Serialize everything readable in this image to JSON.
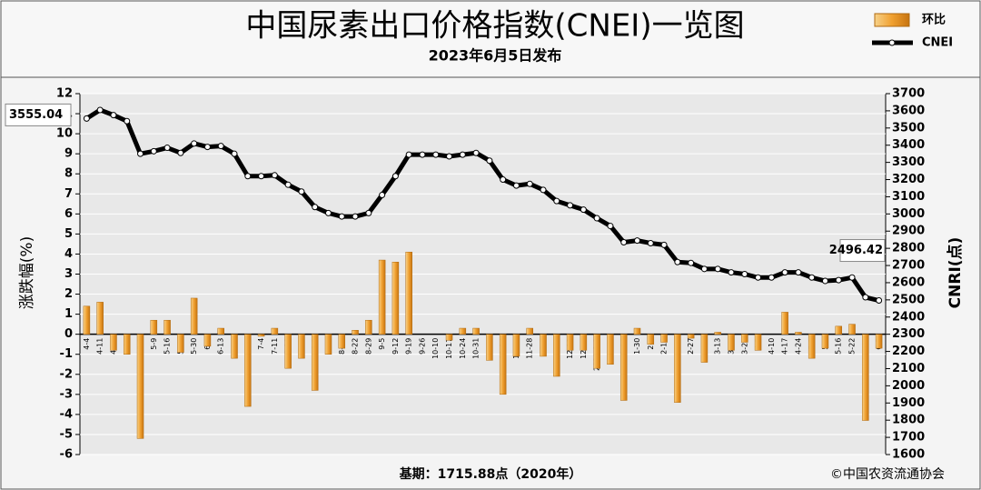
{
  "chart_data": {
    "type": "combo",
    "title": "中国尿素出口价格指数(CNEI)一览图",
    "subtitle": "2023年6月5日发布",
    "y_label": "涨跌幅(%)",
    "y2_label": "CNRI(点)",
    "footnote": "基期：1715.88点（2020年）",
    "source": "©中国农资流通协会",
    "categories": [
      "4-4",
      "4-11",
      "4-18",
      "4-25",
      "5-2",
      "5-9",
      "5-16",
      "5-23",
      "5-30",
      "6-6",
      "6-13",
      "6-20",
      "6-27",
      "7-4",
      "7-11",
      "7-18",
      "7-25",
      "8-1",
      "8-8",
      "8-15",
      "8-22",
      "8-29",
      "9-5",
      "9-12",
      "9-19",
      "9-26",
      "10-10",
      "10-17",
      "10-24",
      "10-31",
      "11-7",
      "11-14",
      "11-21",
      "11-28",
      "12-5",
      "12-12",
      "12-19",
      "12-26",
      "2023-1-2",
      "1-9",
      "1-16",
      "1-30",
      "2-6",
      "2-13",
      "2-20",
      "2-27",
      "3-6",
      "3-13",
      "3-20",
      "3-27",
      "4-3",
      "4-10",
      "4-17",
      "4-24",
      "5-1",
      "5-8",
      "5-16",
      "5-22",
      "5-29",
      "6-5"
    ],
    "series": [
      {
        "name": "环比",
        "color": "#f0a030",
        "values": [
          1.4,
          1.6,
          -0.8,
          -1.0,
          -5.2,
          0.7,
          0.7,
          -0.9,
          1.8,
          -0.6,
          0.3,
          -1.2,
          -3.6,
          -0.1,
          0.3,
          -1.7,
          -1.2,
          -2.8,
          -1.0,
          -0.7,
          0.2,
          0.7,
          3.7,
          3.6,
          4.1,
          0,
          0,
          -0.3,
          0.3,
          0.3,
          -1.3,
          -3.0,
          -1.1,
          0.3,
          -1.1,
          -2.1,
          -0.8,
          -0.8,
          -1.7,
          -1.5,
          -3.3,
          0.3,
          -0.5,
          -0.4,
          -3.4,
          -0.2,
          -1.4,
          0.1,
          -0.8,
          -0.4,
          -0.8,
          0,
          1.1,
          0.1,
          -1.2,
          -0.7,
          0.4,
          0.5,
          -4.3,
          -0.7
        ]
      },
      {
        "name": "CNEI",
        "color": "#000000",
        "axis": "y2",
        "values": [
          3555.04,
          3605,
          3575,
          3540,
          3350,
          3365,
          3385,
          3355,
          3410,
          3390,
          3395,
          3350,
          3220,
          3220,
          3225,
          3170,
          3130,
          3040,
          3005,
          2985,
          2985,
          3005,
          3110,
          3220,
          3345,
          3345,
          3345,
          3335,
          3345,
          3355,
          3310,
          3200,
          3165,
          3175,
          3140,
          3075,
          3050,
          3025,
          2975,
          2930,
          2835,
          2845,
          2830,
          2820,
          2720,
          2715,
          2680,
          2680,
          2660,
          2650,
          2630,
          2630,
          2660,
          2660,
          2630,
          2610,
          2615,
          2630,
          2515,
          2496.42
        ]
      }
    ],
    "ylim": [
      -6,
      12
    ],
    "yticks": [
      -6,
      -5,
      -4,
      -3,
      -2,
      -1,
      0,
      1,
      2,
      3,
      4,
      5,
      6,
      7,
      8,
      9,
      10,
      11,
      12
    ],
    "y2lim": [
      1600,
      3700
    ],
    "y2ticks": [
      1600,
      1700,
      1800,
      1900,
      2000,
      2100,
      2200,
      2300,
      2400,
      2500,
      2600,
      2700,
      2800,
      2900,
      3000,
      3100,
      3200,
      3300,
      3400,
      3500,
      3600,
      3700
    ],
    "grid": true,
    "legend": "top-right"
  }
}
